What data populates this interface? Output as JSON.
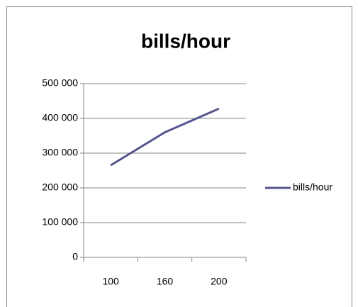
{
  "chart_data": {
    "type": "line",
    "title": "bills/hour",
    "categories": [
      "100",
      "160",
      "200"
    ],
    "series": [
      {
        "name": "bills/hour",
        "color": "#55558f",
        "values": [
          265000,
          360000,
          428000
        ]
      }
    ],
    "ylim": [
      0,
      500000
    ],
    "yticks": [
      0,
      {
        "value": 100000,
        "label": "100 000"
      },
      {
        "value": 200000,
        "label": "200 000"
      },
      {
        "value": 300000,
        "label": "300 000"
      },
      {
        "value": 400000,
        "label": "400 000"
      },
      {
        "value": 500000,
        "label": "500 000"
      }
    ],
    "grid": true,
    "legend": "right"
  }
}
